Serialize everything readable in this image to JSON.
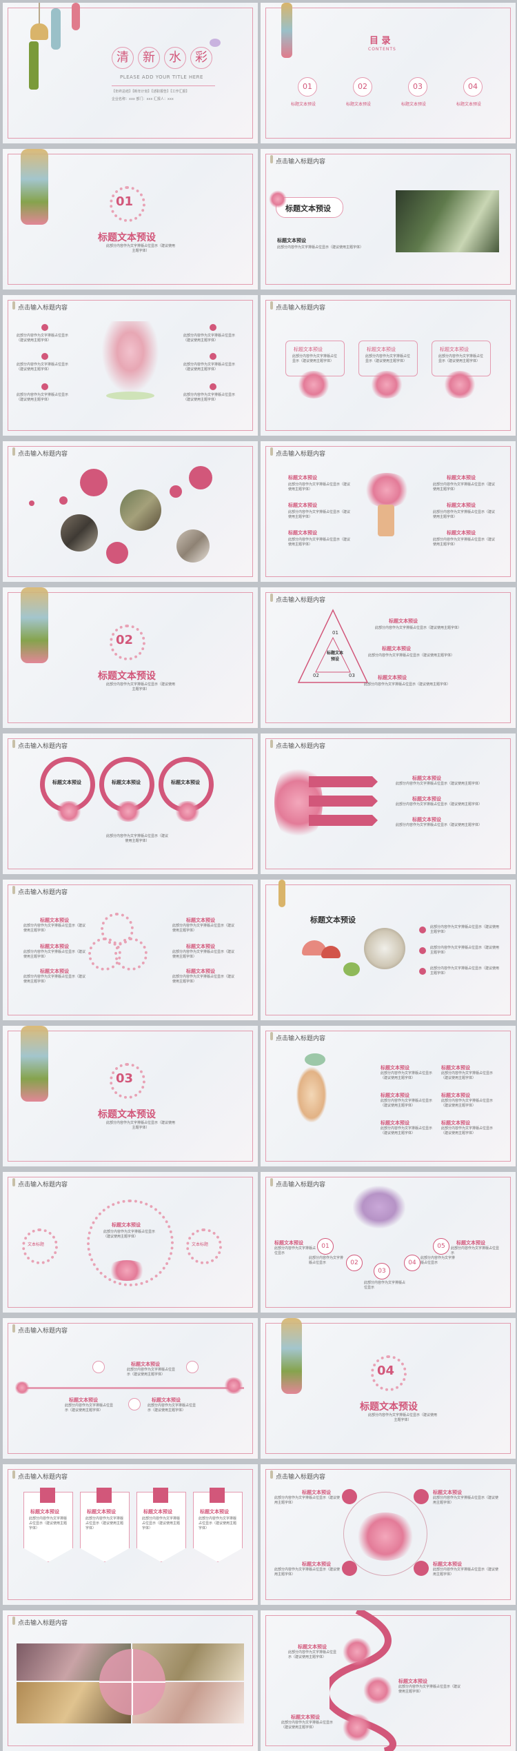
{
  "cover": {
    "title_chars": [
      "清",
      "新",
      "水",
      "彩"
    ],
    "subtitle": "PLEASE ADD YOUR TITLE HERE",
    "tags": [
      "【年终总结】",
      "【新年计划】",
      "【述职报告】",
      "【工作汇报】"
    ],
    "meta": "企业名称：xxx   部门：xxx   汇报人：xxx"
  },
  "toc": {
    "title": "目  录",
    "subtitle": "CONTENTS",
    "items": [
      {
        "num": "01",
        "label": "标题文本预设"
      },
      {
        "num": "02",
        "label": "标题文本预设"
      },
      {
        "num": "03",
        "label": "标题文本预设"
      },
      {
        "num": "04",
        "label": "标题文本预设"
      }
    ]
  },
  "common": {
    "header": "点击输入标题内容",
    "preset_title": "标题文本预设",
    "body": "此部分内容作为文字排版占位显示（建议使用主题字体）",
    "body_short": "此部分内容作为文字排版占位显示",
    "body_hint": "（建议使用主题字体）",
    "label": "文本标题"
  },
  "sections": [
    {
      "num": "01",
      "title": "标题文本预设"
    },
    {
      "num": "02",
      "title": "标题文本预设"
    },
    {
      "num": "03",
      "title": "标题文本预设"
    },
    {
      "num": "04",
      "title": "标题文本预设"
    }
  ],
  "steps": [
    "01",
    "02",
    "03",
    "04",
    "05"
  ],
  "tri_labels": [
    "01",
    "02",
    "03"
  ],
  "tri_center": "标题文本预设"
}
